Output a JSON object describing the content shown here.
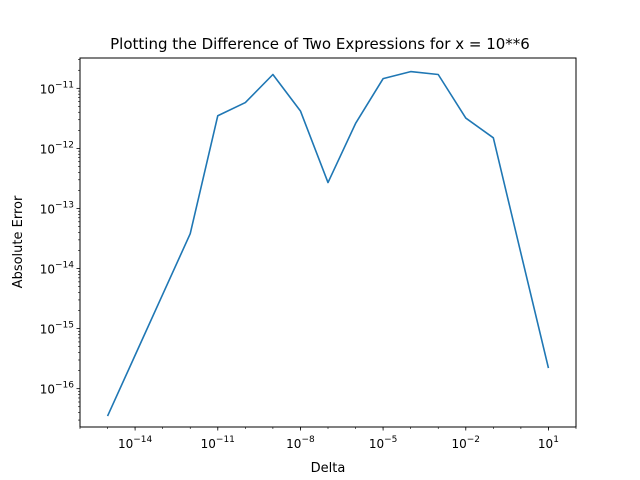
{
  "chart_data": {
    "type": "line",
    "title": "Plotting the Difference of Two Expressions for x = 10**6",
    "xlabel": "Delta",
    "ylabel": "Absolute Error",
    "xscale": "log",
    "yscale": "log",
    "xlim": [
      1e-16,
      100.0
    ],
    "ylim": [
      2.3e-17,
      3.2e-11
    ],
    "xticks": [
      {
        "value": 1e-14,
        "base": "10",
        "exp": "−14"
      },
      {
        "value": 1e-11,
        "base": "10",
        "exp": "−11"
      },
      {
        "value": 1e-08,
        "base": "10",
        "exp": "−8"
      },
      {
        "value": 1e-05,
        "base": "10",
        "exp": "−5"
      },
      {
        "value": 0.01,
        "base": "10",
        "exp": "−2"
      },
      {
        "value": 10.0,
        "base": "10",
        "exp": "1"
      }
    ],
    "yticks": [
      {
        "value": 1e-16,
        "base": "10",
        "exp": "−16"
      },
      {
        "value": 1e-15,
        "base": "10",
        "exp": "−15"
      },
      {
        "value": 1e-14,
        "base": "10",
        "exp": "−14"
      },
      {
        "value": 1e-13,
        "base": "10",
        "exp": "−13"
      },
      {
        "value": 1e-12,
        "base": "10",
        "exp": "−12"
      },
      {
        "value": 1e-11,
        "base": "10",
        "exp": "−11"
      }
    ],
    "grid": false,
    "color": "#1f77b4",
    "series": [
      {
        "x": [
          1e-15,
          1e-14,
          1e-13,
          1e-12,
          1e-11,
          1e-10,
          1e-09,
          1e-08,
          1e-07,
          1e-06,
          1e-05,
          0.0001,
          0.001,
          0.01,
          0.1,
          1.0,
          10.0
        ],
        "y": [
          3.5e-17,
          3.6e-16,
          3.7e-15,
          3.8e-14,
          3.5e-12,
          5.8e-12,
          1.7e-11,
          4.2e-12,
          2.7e-13,
          2.6e-12,
          1.45e-11,
          1.9e-11,
          1.7e-11,
          3.2e-12,
          1.5e-12,
          1.8e-14,
          2.2e-16
        ]
      }
    ]
  }
}
